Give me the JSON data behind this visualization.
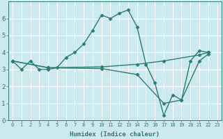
{
  "xlabel": "Humidex (Indice chaleur)",
  "background_color": "#cce9f0",
  "grid_color": "#ffffff",
  "line_color": "#2e7d72",
  "xlim": [
    -0.5,
    23.5
  ],
  "ylim": [
    0,
    7
  ],
  "xticks": [
    0,
    1,
    2,
    3,
    4,
    5,
    6,
    7,
    8,
    9,
    10,
    11,
    12,
    13,
    14,
    15,
    16,
    17,
    18,
    19,
    20,
    21,
    22,
    23
  ],
  "yticks": [
    0,
    1,
    2,
    3,
    4,
    5,
    6
  ],
  "curve1_x": [
    0,
    1,
    2,
    3,
    4,
    5,
    6,
    7,
    8,
    9,
    10,
    11,
    12,
    13,
    14,
    15,
    16,
    17,
    18,
    19,
    20,
    21,
    22
  ],
  "curve1_y": [
    3.5,
    3.0,
    3.5,
    3.0,
    3.0,
    3.1,
    3.7,
    4.0,
    4.5,
    5.3,
    6.2,
    6.0,
    6.3,
    6.5,
    5.5,
    3.3,
    2.2,
    0.3,
    1.5,
    1.2,
    3.5,
    4.1,
    4.0
  ],
  "curve2_x": [
    0,
    4,
    10,
    14,
    17,
    21,
    22
  ],
  "curve2_y": [
    3.5,
    3.1,
    3.15,
    3.3,
    3.5,
    3.85,
    4.0
  ],
  "curve3_x": [
    0,
    4,
    10,
    14,
    17,
    19,
    21,
    22
  ],
  "curve3_y": [
    3.5,
    3.1,
    3.05,
    2.7,
    1.0,
    1.2,
    3.5,
    3.9
  ],
  "marker": "D",
  "markersize": 2.5,
  "linewidth": 1.0,
  "xlabel_fontsize": 6.5,
  "xtick_fontsize": 5.0,
  "ytick_fontsize": 6.5
}
